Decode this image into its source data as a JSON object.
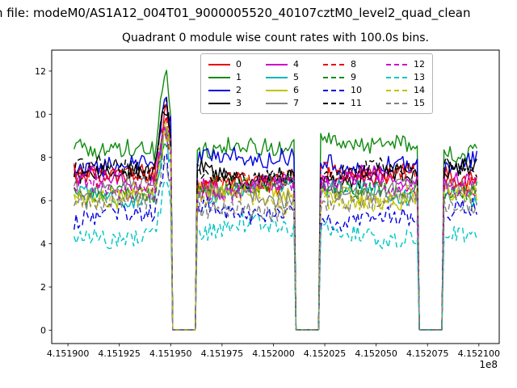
{
  "suptitle": "n file: modeM0/AS1A12_004T01_9000005520_40107cztM0_level2_quad_clean",
  "title": "Quadrant 0 module wise count rates with 100.0s bins.",
  "chart_data": {
    "type": "line",
    "title": "Quadrant 0 module wise count rates with 100.0s bins.",
    "xlabel": "",
    "ylabel": "",
    "grid": false,
    "legend_position": "upper center",
    "legend_columns": 4,
    "x_offset": "1e8",
    "xlim": [
      415189210,
      415210990
    ],
    "ylim": [
      -0.62,
      12.97
    ],
    "x_ticks": [
      415190000,
      415192500,
      415195000,
      415197500,
      415200000,
      415202500,
      415205000,
      415207500,
      415210000
    ],
    "x_tick_labels": [
      "4.151900",
      "4.151925",
      "4.151950",
      "4.151975",
      "4.152000",
      "4.152025",
      "4.152050",
      "4.152075",
      "4.152100"
    ],
    "y_ticks": [
      0,
      2,
      4,
      6,
      8,
      10,
      12
    ],
    "y_tick_labels": [
      "0",
      "2",
      "4",
      "6",
      "8",
      "10",
      "12"
    ],
    "x_start": 415190300,
    "x_end": 415209900,
    "bin_seconds": 100,
    "gaps": [
      [
        415195100,
        415196250
      ],
      [
        415201080,
        415202260
      ],
      [
        415207100,
        415208280
      ]
    ],
    "peak": {
      "start": 415194200,
      "center": 415194750,
      "end": 415195100,
      "max_factor": 1.45
    },
    "noise_amplitude": 0.42,
    "series": [
      {
        "label": "0",
        "color": "#e60000",
        "dash": false,
        "base": 7.0
      },
      {
        "label": "1",
        "color": "#0f8c0f",
        "dash": false,
        "base": 8.5
      },
      {
        "label": "2",
        "color": "#0000e0",
        "dash": false,
        "base": 7.8
      },
      {
        "label": "3",
        "color": "#000000",
        "dash": false,
        "base": 7.15
      },
      {
        "label": "4",
        "color": "#cc00cc",
        "dash": false,
        "base": 6.85
      },
      {
        "label": "5",
        "color": "#00b5b5",
        "dash": false,
        "base": 6.4
      },
      {
        "label": "6",
        "color": "#c2c200",
        "dash": false,
        "base": 6.3
      },
      {
        "label": "7",
        "color": "#808080",
        "dash": false,
        "base": 6.45
      },
      {
        "label": "8",
        "color": "#e60000",
        "dash": true,
        "base": 7.05
      },
      {
        "label": "9",
        "color": "#0f8c0f",
        "dash": true,
        "base": 6.55
      },
      {
        "label": "10",
        "color": "#0000e0",
        "dash": true,
        "base": 5.35
      },
      {
        "label": "11",
        "color": "#000000",
        "dash": true,
        "base": 7.3
      },
      {
        "label": "12",
        "color": "#cc00cc",
        "dash": true,
        "base": 6.6
      },
      {
        "label": "13",
        "color": "#00c6c6",
        "dash": true,
        "base": 4.55
      },
      {
        "label": "14",
        "color": "#c2c200",
        "dash": true,
        "base": 6.15
      },
      {
        "label": "15",
        "color": "#808080",
        "dash": true,
        "base": 5.75
      }
    ]
  }
}
